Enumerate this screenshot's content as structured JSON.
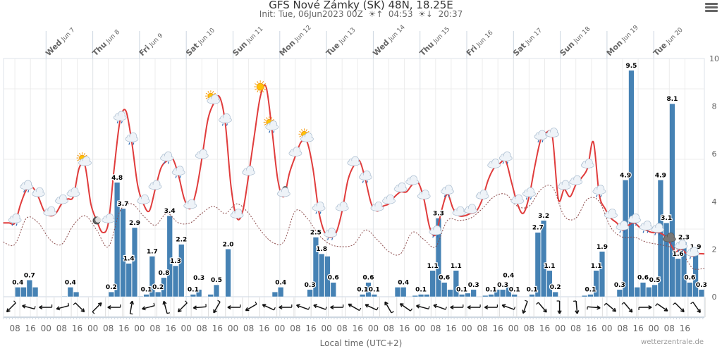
{
  "header": {
    "title": "GFS Nové Zámky (SK) 48N, 18.25E",
    "init_label": "Init: Tue, 06Jun2023 00Z",
    "sunrise": "04:53",
    "sunset": "20:37",
    "menu_icon": "hamburger-menu-icon"
  },
  "footer": {
    "xlabel": "Local time (UTC+2)",
    "credit": "wetterzentrale.de"
  },
  "chart_data": {
    "type": "bar+line",
    "title": "GFS Nové Zámky (SK) 48N, 18.25E",
    "xlabel": "Local time (UTC+2)",
    "xlim": [
      "2023-06-06 02:00",
      "2023-06-21 02:00"
    ],
    "day_labels": [
      {
        "dow": "Wed",
        "date": "Jun 7"
      },
      {
        "dow": "Thu",
        "date": "Jun 8"
      },
      {
        "dow": "Fri",
        "date": "Jun 9"
      },
      {
        "dow": "Sat",
        "date": "Jun 10"
      },
      {
        "dow": "Sun",
        "date": "Jun 11"
      },
      {
        "dow": "Mon",
        "date": "Jun 12"
      },
      {
        "dow": "Tue",
        "date": "Jun 13"
      },
      {
        "dow": "Wed",
        "date": "Jun 14"
      },
      {
        "dow": "Thu",
        "date": "Jun 15"
      },
      {
        "dow": "Fri",
        "date": "Jun 16"
      },
      {
        "dow": "Sat",
        "date": "Jun 17"
      },
      {
        "dow": "Sun",
        "date": "Jun 18"
      },
      {
        "dow": "Mon",
        "date": "Jun 19"
      },
      {
        "dow": "Tue",
        "date": "Jun 20"
      }
    ],
    "hour_tick_labels": [
      "08",
      "16",
      "00"
    ],
    "right_axis": {
      "ticks": [
        "0",
        "2",
        "4",
        "6",
        "8",
        "10"
      ],
      "ylim": [
        0,
        10
      ]
    },
    "grid": true,
    "colors": {
      "precip": "#4682b4",
      "temperature": "#e03c3c",
      "dewpoint": "#8b4a4a"
    },
    "precip_3h": {
      "start": "2023-06-06 02:00",
      "step_hours": 3,
      "values": [
        0,
        0,
        0.4,
        0.4,
        0.7,
        0.4,
        0,
        0,
        0,
        0,
        0.02,
        0.4,
        0.2,
        0,
        0,
        0,
        0,
        0,
        0.2,
        4.8,
        3.7,
        1.4,
        2.9,
        0.02,
        0.1,
        1.7,
        0.2,
        0.8,
        3.4,
        1.3,
        2.2,
        0.02,
        0.1,
        0.3,
        0,
        0.1,
        0.5,
        0,
        2.0,
        0,
        0,
        0,
        0,
        0,
        0,
        0,
        0.2,
        0.4,
        0,
        0,
        0,
        0,
        0.3,
        2.5,
        1.8,
        1.7,
        0.6,
        0,
        0,
        0,
        0,
        0.1,
        0.6,
        0.1,
        0,
        0,
        0,
        0.4,
        0.4,
        0,
        0.05,
        0.1,
        0.1,
        1.1,
        3.3,
        0.6,
        0.3,
        1.1,
        0.1,
        0.15,
        0.3,
        0,
        0.05,
        0.1,
        0.3,
        0.3,
        0.4,
        0.1,
        0,
        0,
        0.1,
        2.7,
        3.2,
        1.1,
        0.2,
        0,
        0,
        0,
        0,
        0.05,
        0.1,
        1.1,
        1.9,
        0,
        0,
        0.3,
        4.9,
        9.5,
        0.4,
        0.6,
        0.4,
        0.5,
        4.9,
        3.1,
        8.1,
        1.6,
        2.3,
        0.6,
        1.9,
        0.3
      ],
      "labeled_indices": [
        2,
        4,
        11,
        18,
        19,
        20,
        21,
        22,
        24,
        25,
        26,
        27,
        28,
        29,
        30,
        32,
        33,
        36,
        38,
        47,
        52,
        53,
        54,
        56,
        61,
        62,
        63,
        68,
        71,
        73,
        74,
        75,
        77,
        78,
        80,
        83,
        85,
        86,
        87,
        90,
        91,
        92,
        93,
        94,
        100,
        101,
        102,
        105,
        106,
        107,
        109,
        111,
        112,
        113,
        114,
        115,
        116,
        117,
        118,
        119
      ]
    },
    "temperature_line": {
      "style": "solid",
      "start": "2023-06-06 02:00",
      "step_hours": 3,
      "values": [
        3.1,
        3.1,
        3.1,
        3.9,
        4.5,
        4.6,
        4.2,
        3.6,
        3.4,
        3.5,
        3.9,
        4.1,
        4.2,
        5.4,
        5.5,
        3.9,
        3.2,
        2.7,
        3.1,
        5.4,
        7.4,
        7.8,
        6.5,
        4.7,
        3.9,
        3.6,
        4.5,
        5.4,
        5.7,
        5.8,
        5.1,
        4.1,
        3.7,
        4.4,
        5.8,
        7.4,
        8.1,
        8.4,
        7.3,
        4.6,
        3.3,
        3.6,
        5.1,
        6.8,
        8.4,
        8.8,
        7.0,
        4.9,
        4.2,
        5.2,
        5.9,
        6.5,
        6.5,
        5.4,
        3.6,
        2.7,
        2.5,
        2.7,
        3.6,
        4.9,
        5.5,
        5.7,
        4.9,
        3.9,
        3.6,
        3.8,
        3.9,
        4.2,
        4.4,
        4.4,
        4.7,
        4.8,
        4.1,
        2.9,
        2.6,
        3.6,
        4.3,
        3.7,
        3.4,
        3.4,
        3.5,
        3.6,
        4.1,
        4.9,
        5.4,
        5.6,
        5.7,
        4.8,
        3.9,
        3.5,
        4.2,
        5.5,
        6.6,
        6.9,
        6.7,
        4.1,
        4.5,
        4.2,
        4.7,
        5.0,
        5.4,
        6.5,
        4.3,
        3.7,
        3.3,
        3.1,
        2.8,
        3.0,
        3.1,
        2.9,
        2.8,
        2.7,
        2.7,
        2.6,
        2.3,
        1.9,
        2.0,
        1.8,
        1.7,
        1.8,
        1.8
      ]
    },
    "dewpoint_line": {
      "style": "dashed",
      "start": "2023-06-06 02:00",
      "step_hours": 6,
      "values": [
        2.3,
        2.2,
        3.3,
        3.1,
        2.4,
        2.2,
        3.0,
        3.4,
        2.8,
        2.1,
        3.6,
        3.9,
        3.4,
        3.0,
        3.5,
        3.1,
        3.1,
        3.5,
        3.8,
        3.5,
        3.9,
        3.5,
        2.8,
        2.3,
        2.3,
        3.6,
        3.3,
        2.6,
        2.2,
        2.1,
        2.2,
        2.8,
        2.4,
        1.9,
        1.8,
        2.7,
        2.4,
        2.1,
        3.2,
        3.2,
        3.3,
        3.7,
        4.2,
        4.3,
        3.8,
        3.8,
        4.5,
        4.6,
        3.4,
        3.3,
        4.1,
        4.0,
        2.9,
        2.5,
        2.5,
        2.3,
        2.2,
        2.1,
        1.9,
        1.2,
        1.2
      ]
    },
    "weather_icons": {
      "start": "2023-06-06 08:00",
      "step_hours": 6,
      "types": [
        "rain",
        "rain",
        "cloud",
        "cloud",
        "cloud",
        "cloud",
        "sun-cloud",
        "moon",
        "cloud",
        "rain",
        "rain",
        "cloud",
        "cloud",
        "rain",
        "rain",
        "cloud",
        "cloud",
        "sun-cloud",
        "rain",
        "cloud",
        "cloud",
        "sun",
        "sun-rain",
        "moon-cloud",
        "cloud",
        "sun-cloud",
        "rain",
        "rain",
        "cloud",
        "cloud",
        "rain",
        "cloud",
        "cloud",
        "cloud",
        "cloud",
        "cloud",
        "rain",
        "rain",
        "cloud",
        "cloud",
        "cloud",
        "cloud",
        "rain",
        "cloud",
        "rain",
        "rain",
        "cloud",
        "cloud",
        "cloud",
        "cloud",
        "rain",
        "cloud",
        "rain",
        "rain",
        "rain",
        "rain",
        "thunder",
        "rain",
        "rain"
      ]
    },
    "wind_directions_deg": [
      225,
      285,
      270,
      255,
      135,
      45,
      270,
      10,
      255,
      345,
      225,
      265,
      210,
      270,
      240,
      295,
      270,
      290,
      290,
      270,
      300,
      295,
      330,
      305,
      285,
      290,
      270,
      270,
      270,
      290,
      200,
      140,
      180,
      175,
      95,
      130,
      140,
      90,
      125,
      135,
      145
    ]
  }
}
